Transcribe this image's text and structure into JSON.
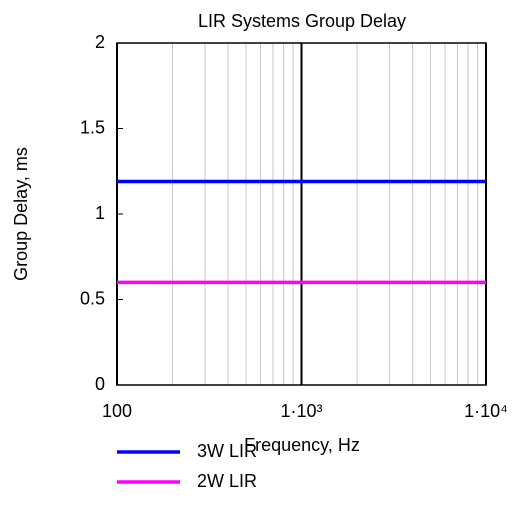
{
  "chart_data": {
    "type": "line",
    "title": "LIR Systems Group Delay",
    "xlabel": "Frequency, Hz",
    "ylabel": "Group Delay, ms",
    "x": [
      100,
      10000
    ],
    "series": [
      {
        "name": "3W LIR",
        "color": "#0000ff",
        "values": [
          1.19,
          1.19
        ]
      },
      {
        "name": "2W LIR",
        "color": "#ff00ff",
        "values": [
          0.6,
          0.6
        ]
      }
    ],
    "xscale": "log",
    "xlim": [
      100,
      10000
    ],
    "xticks": [
      100,
      {
        "value": 1000,
        "label": "1·10³"
      },
      {
        "value": 10000,
        "label": "1·10⁴"
      }
    ],
    "xminorticks": [
      200,
      300,
      400,
      500,
      600,
      700,
      800,
      900,
      2000,
      3000,
      4000,
      5000,
      6000,
      7000,
      8000,
      9000
    ],
    "ylim": [
      0,
      2
    ],
    "yticks": [
      0,
      0.5,
      1,
      1.5,
      2
    ],
    "grid": true,
    "legend": "bottom"
  }
}
